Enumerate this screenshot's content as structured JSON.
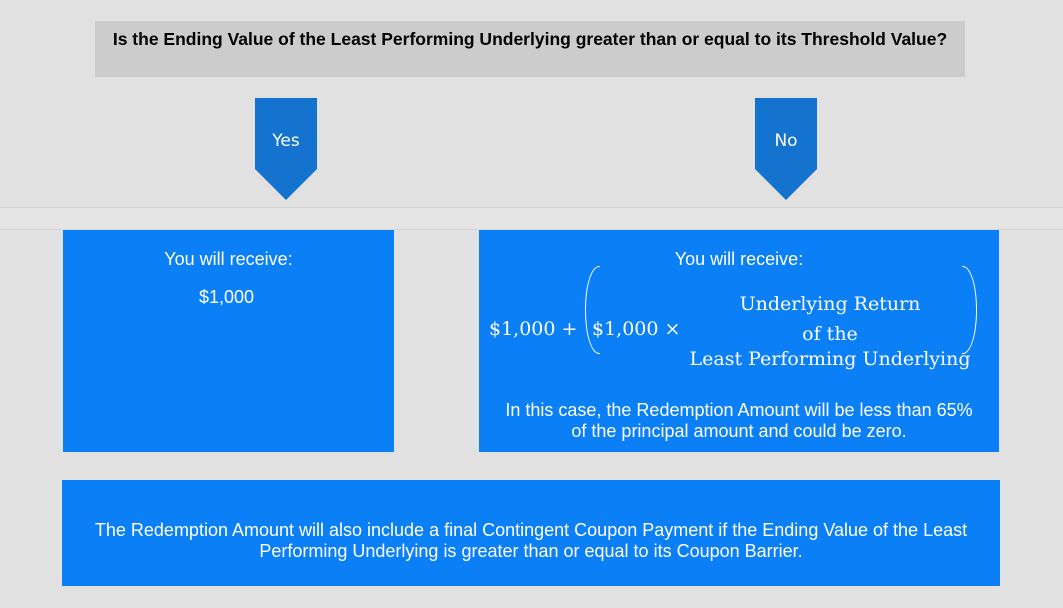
{
  "question": "Is the Ending Value of the Least Performing Underlying greater than or equal to its Threshold Value?",
  "branches": {
    "yes": {
      "label": "Yes",
      "receive_label": "You will receive:",
      "amount": "$1,000"
    },
    "no": {
      "label": "No",
      "receive_label": "You will receive:",
      "formula": {
        "base": "$1,000 +",
        "inner": "$1,000 ×",
        "fraction_line1": "Underlying Return",
        "fraction_line2": "of the",
        "fraction_line3": "Least Performing Underlying"
      },
      "note": "In this case, the Redemption Amount will be less than 65% of the principal amount and could be zero."
    }
  },
  "footer": "The Redemption Amount will also include a final Contingent Coupon Payment if the Ending Value of the Least Performing Underlying is greater than or equal to its Coupon Barrier.",
  "colors": {
    "background": "#e1e1e1",
    "question_box": "#cccccc",
    "arrow": "#1473cf",
    "result_box": "#0b7ff5"
  }
}
